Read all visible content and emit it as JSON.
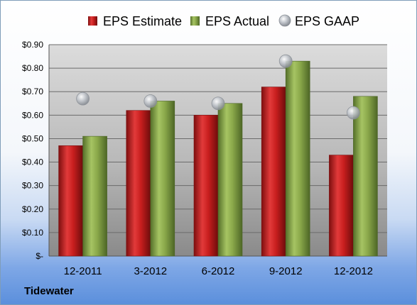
{
  "company": "Tidewater",
  "colors": {
    "estimate": "#c81e1e",
    "actual": "#8aa84a",
    "gaap": "#b8bcc2"
  },
  "chart_data": {
    "type": "bar",
    "categories": [
      "12-2011",
      "3-2012",
      "6-2012",
      "9-2012",
      "12-2012"
    ],
    "series": [
      {
        "name": "EPS Estimate",
        "kind": "bar",
        "values": [
          0.47,
          0.62,
          0.6,
          0.72,
          0.43
        ]
      },
      {
        "name": "EPS Actual",
        "kind": "bar",
        "values": [
          0.51,
          0.66,
          0.65,
          0.83,
          0.68
        ]
      },
      {
        "name": "EPS GAAP",
        "kind": "marker",
        "values": [
          0.67,
          0.66,
          0.65,
          0.83,
          0.61
        ]
      }
    ],
    "yticks": [
      "$-",
      "$0.10",
      "$0.20",
      "$0.30",
      "$0.40",
      "$0.50",
      "$0.60",
      "$0.70",
      "$0.80",
      "$0.90"
    ],
    "ylim": [
      0,
      0.9
    ],
    "grid": true,
    "legend_position": "top"
  }
}
